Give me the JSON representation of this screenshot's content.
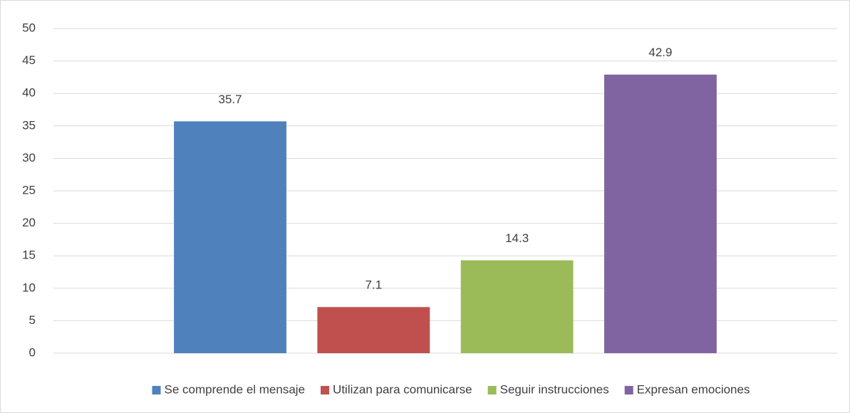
{
  "chart_data": {
    "type": "bar",
    "categories": [
      null
    ],
    "series": [
      {
        "name": "Se comprende el mensaje",
        "color": "#4f81bd",
        "values": [
          35.7
        ]
      },
      {
        "name": "Utilizan para comunicarse",
        "color": "#c0504d",
        "values": [
          7.1
        ]
      },
      {
        "name": "Seguir instrucciones",
        "color": "#9bbb59",
        "values": [
          14.3
        ]
      },
      {
        "name": "Expresan emociones",
        "color": "#8064a2",
        "values": [
          42.9
        ]
      }
    ],
    "ylim": [
      0,
      50
    ],
    "yticks": [
      0,
      5,
      10,
      15,
      20,
      25,
      30,
      35,
      40,
      45,
      50
    ],
    "grid": true,
    "legend": "bottom",
    "data_labels": true
  }
}
